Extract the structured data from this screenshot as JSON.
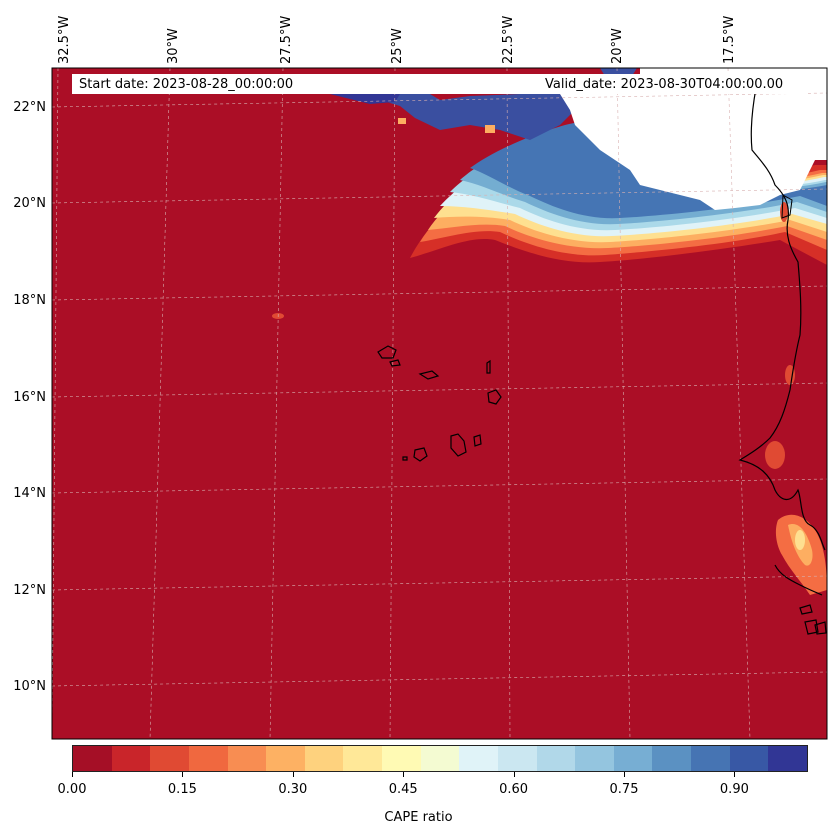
{
  "header": {
    "start_date": "Start date: 2023-08-28_00:00:00",
    "valid_date": "Valid_date: 2023-08-30T04:00:00.00"
  },
  "lon_labels": [
    "32.5°W",
    "30°W",
    "27.5°W",
    "25°W",
    "22.5°W",
    "20°W",
    "17.5°W"
  ],
  "lat_labels": [
    "22°N",
    "20°N",
    "18°N",
    "16°N",
    "14°N",
    "12°N",
    "10°N"
  ],
  "colorbar": {
    "label": "CAPE ratio",
    "ticks": [
      "0.00",
      "0.15",
      "0.30",
      "0.45",
      "0.60",
      "0.75",
      "0.90"
    ],
    "colors": [
      "#a50f26",
      "#c9252a",
      "#e04a33",
      "#f0683f",
      "#f88d52",
      "#fdb163",
      "#fed27e",
      "#ffe898",
      "#fffab4",
      "#f4fbd2",
      "#e0f3f8",
      "#cbe7f1",
      "#b1d8e9",
      "#94c5df",
      "#77aed3",
      "#5b91c2",
      "#4674b3",
      "#3858a5",
      "#313695"
    ],
    "range": [
      0,
      1
    ]
  },
  "colors": {
    "background_field": "#ab0e26",
    "coast": "#000000",
    "land_mask": "#ffffff"
  }
}
